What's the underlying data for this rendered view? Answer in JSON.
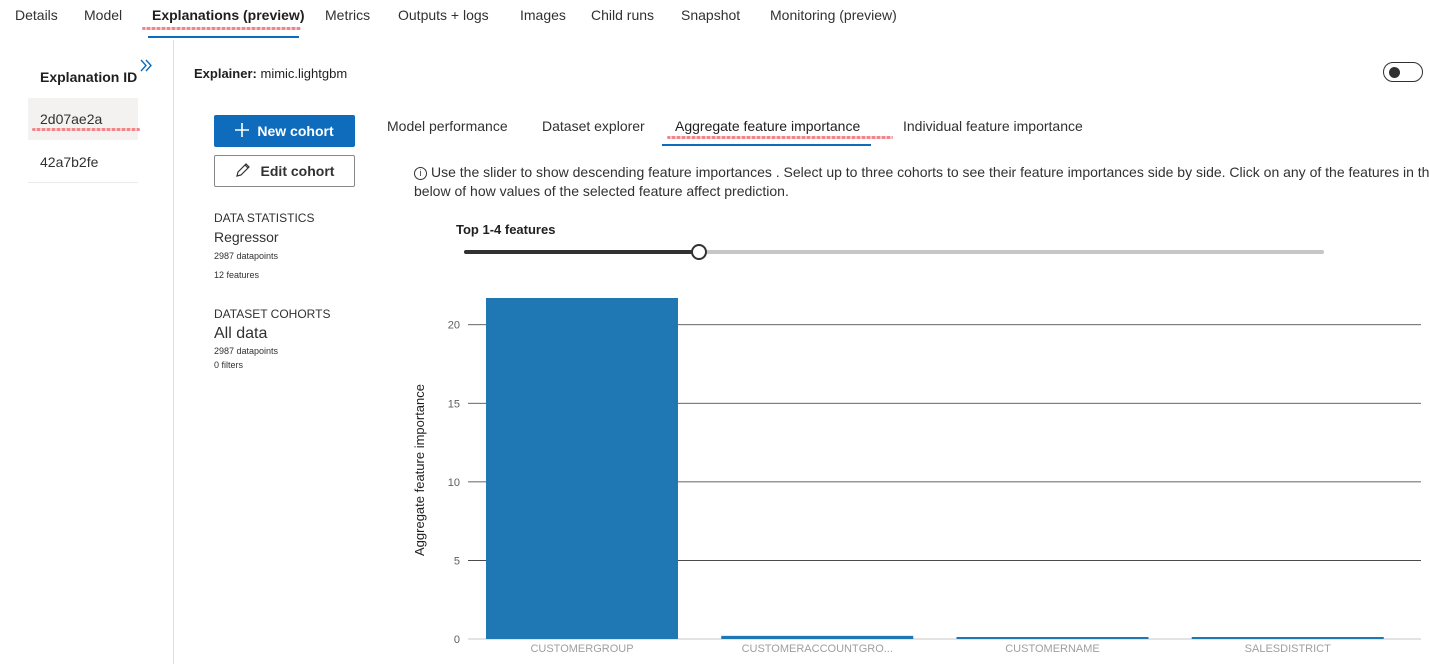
{
  "topnav": {
    "tabs": [
      {
        "label": "Details"
      },
      {
        "label": "Model"
      },
      {
        "label": "Explanations (preview)"
      },
      {
        "label": "Metrics"
      },
      {
        "label": "Outputs + logs"
      },
      {
        "label": "Images"
      },
      {
        "label": "Child runs"
      },
      {
        "label": "Snapshot"
      },
      {
        "label": "Monitoring (preview)"
      }
    ],
    "active_index": 2
  },
  "explanations_panel": {
    "title": "Explanation ID",
    "items": [
      {
        "label": "2d07ae2a",
        "selected": true
      },
      {
        "label": "42a7b2fe",
        "selected": false
      }
    ]
  },
  "explainer": {
    "label": "Explainer:",
    "value": "mimic.lightgbm"
  },
  "cohort_panel": {
    "new_cohort_label": "New cohort",
    "edit_cohort_label": "Edit cohort",
    "data_statistics_label": "DATA STATISTICS",
    "model_type": "Regressor",
    "datapoints": "2987 datapoints",
    "features": "12 features",
    "dataset_cohorts_label": "DATASET COHORTS",
    "cohort_name": "All data",
    "cohort_datapoints": "2987 datapoints",
    "cohort_filters": "0 filters"
  },
  "subtabs": [
    {
      "label": "Model performance"
    },
    {
      "label": "Dataset explorer"
    },
    {
      "label": "Aggregate feature importance"
    },
    {
      "label": "Individual feature importance"
    }
  ],
  "info": {
    "icon": "info-icon",
    "line1": "Use the slider to show descending feature importances . Select up to three cohorts to see their feature importances side by side. Click on any of the features in the",
    "line2": "below of how values of the selected feature affect prediction."
  },
  "slider": {
    "label": "Top 1-4 features",
    "value": 4,
    "min": 1,
    "max": 12
  },
  "colors": {
    "accent": "#0f6cbd",
    "bar": "#1f77b4",
    "squiggle": "#f0868a"
  },
  "chart_data": {
    "type": "bar",
    "ylabel": "Aggregate feature importance",
    "categories": [
      "CUSTOMERGROUP",
      "CUSTOMERACCOUNTGRO...",
      "CUSTOMERNAME",
      "SALESDISTRICT"
    ],
    "values": [
      21.7,
      0.2,
      0.08,
      0.06
    ],
    "yticks": [
      "0",
      "5",
      "10",
      "15",
      "20"
    ],
    "ylim": [
      0,
      21.7
    ],
    "grid": true
  }
}
